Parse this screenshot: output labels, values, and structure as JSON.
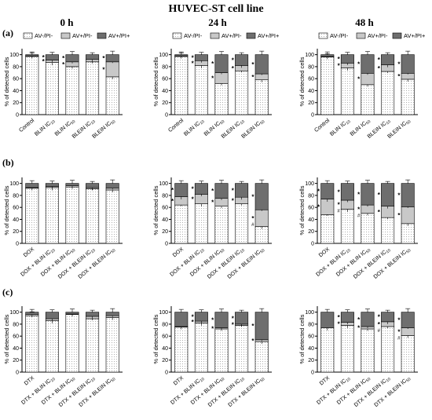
{
  "figure": {
    "title": "HUVEC-ST cell line",
    "time_labels": [
      "0 h",
      "24 h",
      "48 h"
    ],
    "row_labels": [
      "(a)",
      "(b)",
      "(c)"
    ],
    "legend": [
      "AV-/PI-",
      "AV+/PI-",
      "AV+/PI+"
    ],
    "ylabel": "% of detected cells",
    "yticks": [
      0,
      20,
      40,
      60,
      80,
      100
    ],
    "colors": {
      "av_neg_pi_neg": "#ffffff",
      "av_pos_pi_neg": "#c8c8c8",
      "av_pos_pi_pos": "#6e6e6e",
      "dots": "#9a9a9a",
      "axis": "#000000"
    }
  },
  "chart_data": [
    {
      "type": "bar",
      "stacked": true,
      "panel": "(a) 0 h",
      "categories": [
        "Control",
        "BLIN IC10",
        "BLIN IC50",
        "BLEIN IC10",
        "BLEIN IC50"
      ],
      "series": [
        {
          "name": "AV-/PI-",
          "values": [
            97,
            87,
            80,
            88,
            63
          ]
        },
        {
          "name": "AV+/PI-",
          "values": [
            1,
            4,
            8,
            4,
            25
          ]
        },
        {
          "name": "AV+/PI+",
          "values": [
            2,
            9,
            12,
            8,
            12
          ]
        }
      ],
      "significance": [
        "",
        "*",
        "*",
        "",
        "*"
      ],
      "ylim": [
        0,
        110
      ]
    },
    {
      "type": "bar",
      "stacked": true,
      "panel": "(a) 24 h",
      "categories": [
        "Control",
        "BLIN IC10",
        "BLIN IC50",
        "BLEIN IC10",
        "BLEIN IC50"
      ],
      "series": [
        {
          "name": "AV-/PI-",
          "values": [
            97,
            82,
            52,
            73,
            58
          ]
        },
        {
          "name": "AV+/PI-",
          "values": [
            1,
            8,
            18,
            9,
            10
          ]
        },
        {
          "name": "AV+/PI+",
          "values": [
            2,
            10,
            30,
            18,
            32
          ]
        }
      ],
      "significance": [
        "",
        "*",
        "*",
        "*",
        "*"
      ],
      "ylim": [
        0,
        110
      ]
    },
    {
      "type": "bar",
      "stacked": true,
      "panel": "(a) 48 h",
      "categories": [
        "Control",
        "BLIN IC10",
        "BLIN IC50",
        "BLEIN IC10",
        "BLEIN IC50"
      ],
      "series": [
        {
          "name": "AV-/PI-",
          "values": [
            96,
            78,
            50,
            72,
            59
          ]
        },
        {
          "name": "AV+/PI-",
          "values": [
            1,
            8,
            19,
            11,
            10
          ]
        },
        {
          "name": "AV+/PI+",
          "values": [
            3,
            14,
            31,
            17,
            31
          ]
        }
      ],
      "significance": [
        "",
        "*",
        "*",
        "*",
        "*"
      ],
      "ylim": [
        0,
        110
      ]
    },
    {
      "type": "bar",
      "stacked": true,
      "panel": "(b) 0 h",
      "categories": [
        "DOX",
        "DOX + BLIN IC10",
        "DOX + BLIN IC50",
        "DOX + BLEIN IC10",
        "DOX + BLEIN IC50"
      ],
      "series": [
        {
          "name": "AV-/PI-",
          "values": [
            92,
            93,
            94,
            91,
            89
          ]
        },
        {
          "name": "AV+/PI-",
          "values": [
            1,
            2,
            2,
            2,
            3
          ]
        },
        {
          "name": "AV+/PI+",
          "values": [
            7,
            5,
            4,
            7,
            8
          ]
        }
      ],
      "significance": [
        "",
        "",
        "",
        "",
        ""
      ],
      "ylim": [
        0,
        110
      ]
    },
    {
      "type": "bar",
      "stacked": true,
      "panel": "(b) 24 h",
      "categories": [
        "DOX",
        "DOX + BLIN IC10",
        "DOX + BLIN IC50",
        "DOX + BLEIN IC10",
        "DOX + BLEIN IC50"
      ],
      "series": [
        {
          "name": "AV-/PI-",
          "values": [
            64,
            66,
            62,
            66,
            28
          ]
        },
        {
          "name": "AV+/PI-",
          "values": [
            14,
            16,
            13,
            11,
            28
          ]
        },
        {
          "name": "AV+/PI+",
          "values": [
            22,
            18,
            25,
            23,
            44
          ]
        }
      ],
      "significance": [
        "*",
        "*",
        "*",
        "*",
        "*#"
      ],
      "ylim": [
        0,
        110
      ]
    },
    {
      "type": "bar",
      "stacked": true,
      "panel": "(b) 48 h",
      "categories": [
        "DOX",
        "DOX + BLIN IC10",
        "DOX + BLIN IC50",
        "DOX + BLEIN IC10",
        "DOX + BLEIN IC50"
      ],
      "series": [
        {
          "name": "AV-/PI-",
          "values": [
            48,
            57,
            50,
            43,
            33
          ]
        },
        {
          "name": "AV+/PI-",
          "values": [
            26,
            15,
            14,
            19,
            28
          ]
        },
        {
          "name": "AV+/PI+",
          "values": [
            26,
            28,
            36,
            38,
            39
          ]
        }
      ],
      "significance": [
        "*",
        "*#",
        "*#",
        "*",
        "*"
      ],
      "ylim": [
        0,
        110
      ]
    },
    {
      "type": "bar",
      "stacked": true,
      "panel": "(c) 0 h",
      "categories": [
        "DTX",
        "DTX + BLIN IC10",
        "DTX + BLIN IC50",
        "DTX + BLEIN IC10",
        "DTX + BLEIN IC50"
      ],
      "series": [
        {
          "name": "AV-/PI-",
          "values": [
            94,
            86,
            96,
            89,
            91
          ]
        },
        {
          "name": "AV+/PI-",
          "values": [
            2,
            3,
            1,
            4,
            3
          ]
        },
        {
          "name": "AV+/PI+",
          "values": [
            4,
            11,
            3,
            7,
            6
          ]
        }
      ],
      "significance": [
        "",
        "",
        "",
        "",
        ""
      ],
      "ylim": [
        0,
        110
      ]
    },
    {
      "type": "bar",
      "stacked": true,
      "panel": "(c) 24 h",
      "categories": [
        "DTX",
        "DTX + BLIN IC10",
        "DTX + BLIN IC50",
        "DTX + BLEIN IC10",
        "DTX + BLEIN IC50"
      ],
      "series": [
        {
          "name": "AV-/PI-",
          "values": [
            75,
            82,
            72,
            78,
            51
          ]
        },
        {
          "name": "AV+/PI-",
          "values": [
            1,
            3,
            2,
            2,
            3
          ]
        },
        {
          "name": "AV+/PI+",
          "values": [
            24,
            15,
            26,
            20,
            46
          ]
        }
      ],
      "significance": [
        "",
        "*",
        "*",
        "*",
        "*"
      ],
      "ylim": [
        0,
        110
      ]
    },
    {
      "type": "bar",
      "stacked": true,
      "panel": "(c) 48 h",
      "categories": [
        "DTX",
        "DTX + BLIN IC10",
        "DTX + BLIN IC50",
        "DTX + BLEIN IC10",
        "DTX + BLEIN IC50"
      ],
      "series": [
        {
          "name": "AV-/PI-",
          "values": [
            74,
            78,
            72,
            76,
            61
          ]
        },
        {
          "name": "AV+/PI-",
          "values": [
            0,
            5,
            4,
            8,
            13
          ]
        },
        {
          "name": "AV+/PI+",
          "values": [
            26,
            17,
            24,
            16,
            26
          ]
        }
      ],
      "significance": [
        "",
        "*",
        "*",
        "*#",
        "*#"
      ],
      "ylim": [
        0,
        110
      ]
    }
  ]
}
